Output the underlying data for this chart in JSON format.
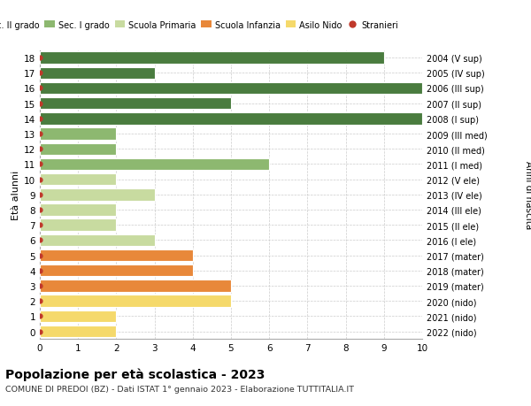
{
  "ages": [
    0,
    1,
    2,
    3,
    4,
    5,
    6,
    7,
    8,
    9,
    10,
    11,
    12,
    13,
    14,
    15,
    16,
    17,
    18
  ],
  "right_labels": [
    "2022 (nido)",
    "2021 (nido)",
    "2020 (nido)",
    "2019 (mater)",
    "2018 (mater)",
    "2017 (mater)",
    "2016 (I ele)",
    "2015 (II ele)",
    "2014 (III ele)",
    "2013 (IV ele)",
    "2012 (V ele)",
    "2011 (I med)",
    "2010 (II med)",
    "2009 (III med)",
    "2008 (I sup)",
    "2007 (II sup)",
    "2006 (III sup)",
    "2005 (IV sup)",
    "2004 (V sup)"
  ],
  "values": [
    2,
    2,
    5,
    5,
    4,
    4,
    3,
    2,
    2,
    3,
    2,
    6,
    2,
    2,
    10,
    5,
    10,
    3,
    9
  ],
  "colors": [
    "#f5d96b",
    "#f5d96b",
    "#f5d96b",
    "#e8883a",
    "#e8883a",
    "#e8883a",
    "#c8dba0",
    "#c8dba0",
    "#c8dba0",
    "#c8dba0",
    "#c8dba0",
    "#8db870",
    "#8db870",
    "#8db870",
    "#4a7c3f",
    "#4a7c3f",
    "#4a7c3f",
    "#4a7c3f",
    "#4a7c3f"
  ],
  "title": "Popolazione per età scolastica - 2023",
  "subtitle": "COMUNE DI PREDOI (BZ) - Dati ISTAT 1° gennaio 2023 - Elaborazione TUTTITALIA.IT",
  "ylabel": "Età alunni",
  "right_ylabel": "Anni di nascita",
  "xlim": [
    0,
    10
  ],
  "legend_labels": [
    "Sec. II grado",
    "Sec. I grado",
    "Scuola Primaria",
    "Scuola Infanzia",
    "Asilo Nido",
    "Stranieri"
  ],
  "legend_colors": [
    "#4a7c3f",
    "#8db870",
    "#c8dba0",
    "#e8883a",
    "#f5d96b",
    "#c0392b"
  ],
  "bg_color": "#ffffff",
  "grid_color": "#cccccc",
  "dot_color": "#c0392b"
}
